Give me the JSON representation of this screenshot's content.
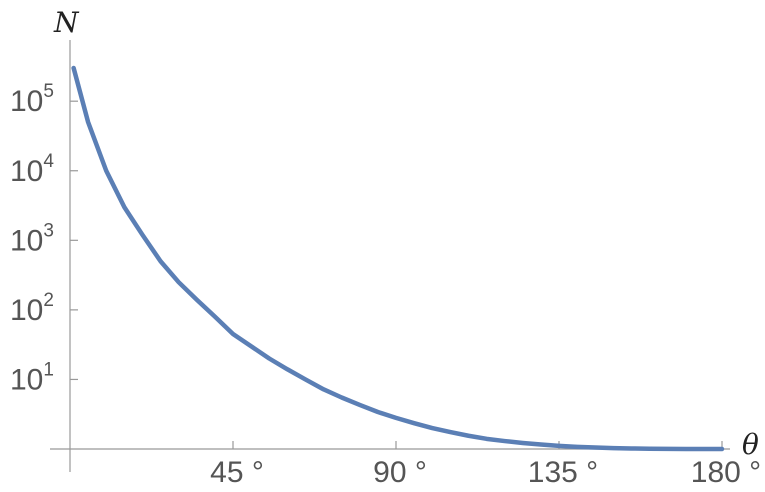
{
  "chart_data": {
    "type": "line",
    "title": "",
    "xlabel": "θ",
    "ylabel": "N",
    "x_unit": "°",
    "y_scale": "log",
    "xlim": [
      0,
      180
    ],
    "ylim": [
      1,
      300000
    ],
    "x_ticks": [
      {
        "value": 45,
        "label": "45 °"
      },
      {
        "value": 90,
        "label": "90 °"
      },
      {
        "value": 135,
        "label": "135 °"
      },
      {
        "value": 180,
        "label": "180 °"
      }
    ],
    "y_ticks": [
      {
        "value": 10,
        "base": "10",
        "exp": "1"
      },
      {
        "value": 100,
        "base": "10",
        "exp": "2"
      },
      {
        "value": 1000,
        "base": "10",
        "exp": "3"
      },
      {
        "value": 10000,
        "base": "10",
        "exp": "4"
      },
      {
        "value": 100000,
        "base": "10",
        "exp": "5"
      }
    ],
    "grid": false,
    "series": [
      {
        "color": "#5b7fb5",
        "x": [
          1,
          5,
          10,
          15,
          20,
          25,
          30,
          35,
          40,
          45,
          50,
          55,
          60,
          65,
          70,
          75,
          80,
          85,
          90,
          95,
          100,
          105,
          110,
          115,
          120,
          125,
          130,
          135,
          140,
          145,
          150,
          155,
          160,
          165,
          170,
          175,
          180
        ],
        "y": [
          300000,
          50000,
          10000,
          3000,
          1200,
          500,
          250,
          140,
          80,
          45,
          30,
          20,
          14,
          10,
          7.2,
          5.5,
          4.3,
          3.4,
          2.8,
          2.35,
          2.0,
          1.75,
          1.55,
          1.4,
          1.3,
          1.22,
          1.16,
          1.11,
          1.075,
          1.05,
          1.03,
          1.018,
          1.01,
          1.005,
          1.002,
          1.0005,
          1.0
        ]
      }
    ]
  }
}
